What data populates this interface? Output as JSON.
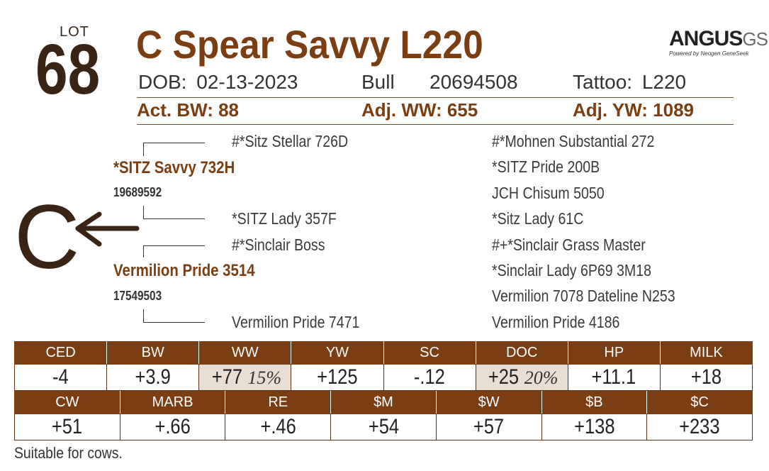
{
  "lot": {
    "label": "LOT",
    "number": "68"
  },
  "animal": {
    "name": "C Spear Savvy L220"
  },
  "logo": {
    "main": "ANGUS",
    "suffix": "GS",
    "sub": "Powered by Neogen GeneSeek"
  },
  "info": {
    "dob_label": "DOB:",
    "dob": "02-13-2023",
    "sex": "Bull",
    "registration": "20694508",
    "tattoo_label": "Tattoo:",
    "tattoo": "L220"
  },
  "performance": {
    "act_bw_label": "Act. BW:",
    "act_bw": "88",
    "adj_ww_label": "Adj. WW:",
    "adj_ww": "655",
    "adj_yw_label": "Adj. YW:",
    "adj_yw": "1089"
  },
  "pedigree": {
    "sire": {
      "name": "*SITZ Savvy 732H",
      "reg": "19689592"
    },
    "sire_sire": "#*Sitz Stellar 726D",
    "sire_dam": "*SITZ Lady 357F",
    "sire_sire_sire": "#*Mohnen Substantial 272",
    "sire_sire_dam": "*SITZ Pride 200B",
    "sire_dam_sire": "JCH Chisum 5050",
    "sire_dam_dam": "*Sitz Lady 61C",
    "dam": {
      "name": "Vermilion Pride 3514",
      "reg": "17549503"
    },
    "dam_sire": "#*Sinclair Boss",
    "dam_dam": "Vermilion Pride 7471",
    "dam_sire_sire": "#+*Sinclair Grass Master",
    "dam_sire_dam": "*Sinclair Lady 6P69 3M18",
    "dam_dam_sire": "Vermilion 7078 Dateline N253",
    "dam_dam_dam": "Vermilion Pride 4186",
    "marker": "C"
  },
  "epd_row1": {
    "headers": [
      "CED",
      "BW",
      "WW",
      "YW",
      "SC",
      "DOC",
      "HP",
      "MILK"
    ],
    "values": [
      "-4",
      "+3.9",
      "+77",
      "+125",
      "-.12",
      "+25",
      "+11.1",
      "+18"
    ],
    "ww_pct": "15%",
    "doc_pct": "20%"
  },
  "epd_row2": {
    "headers": [
      "CW",
      "MARB",
      "RE",
      "$M",
      "$W",
      "$B",
      "$C"
    ],
    "values": [
      "+51",
      "+.66",
      "+.46",
      "+54",
      "+57",
      "+138",
      "+233"
    ]
  },
  "highlight_color": "#e9ded3",
  "brand_color": "#7b3e12",
  "note": "Suitable for cows."
}
